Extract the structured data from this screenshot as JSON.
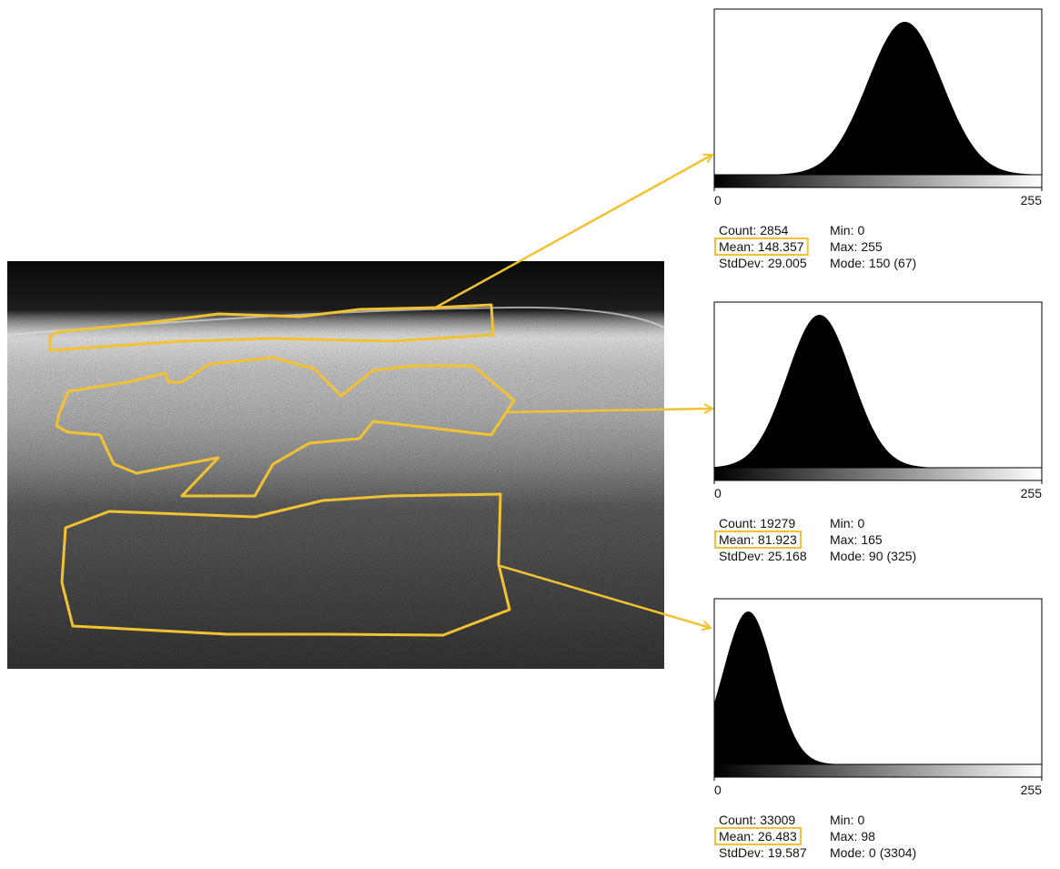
{
  "histograms": [
    {
      "xticks": [
        0,
        255
      ],
      "stats": {
        "count_label": "Count:",
        "count": 2854,
        "mean_label": "Mean:",
        "mean": 148.357,
        "stddev_label": "StdDev:",
        "stddev": 29.005,
        "min_label": "Min:",
        "min": 0,
        "max_label": "Max:",
        "max": 255,
        "mode_label": "Mode:",
        "mode": 150,
        "mode_count": "(67)"
      }
    },
    {
      "xticks": [
        0,
        255
      ],
      "stats": {
        "count_label": "Count:",
        "count": 19279,
        "mean_label": "Mean:",
        "mean": 81.923,
        "stddev_label": "StdDev:",
        "stddev": 25.168,
        "min_label": "Min:",
        "min": 0,
        "max_label": "Max:",
        "max": 165,
        "mode_label": "Mode:",
        "mode": 90,
        "mode_count": "(325)"
      }
    },
    {
      "xticks": [
        0,
        255
      ],
      "stats": {
        "count_label": "Count:",
        "count": 33009,
        "mean_label": "Mean:",
        "mean": 26.483,
        "stddev_label": "StdDev:",
        "stddev": 19.587,
        "min_label": "Min:",
        "min": 0,
        "max_label": "Max:",
        "max": 98,
        "mode_label": "Mode:",
        "mode": 0,
        "mode_count": "(3304)"
      }
    }
  ]
}
